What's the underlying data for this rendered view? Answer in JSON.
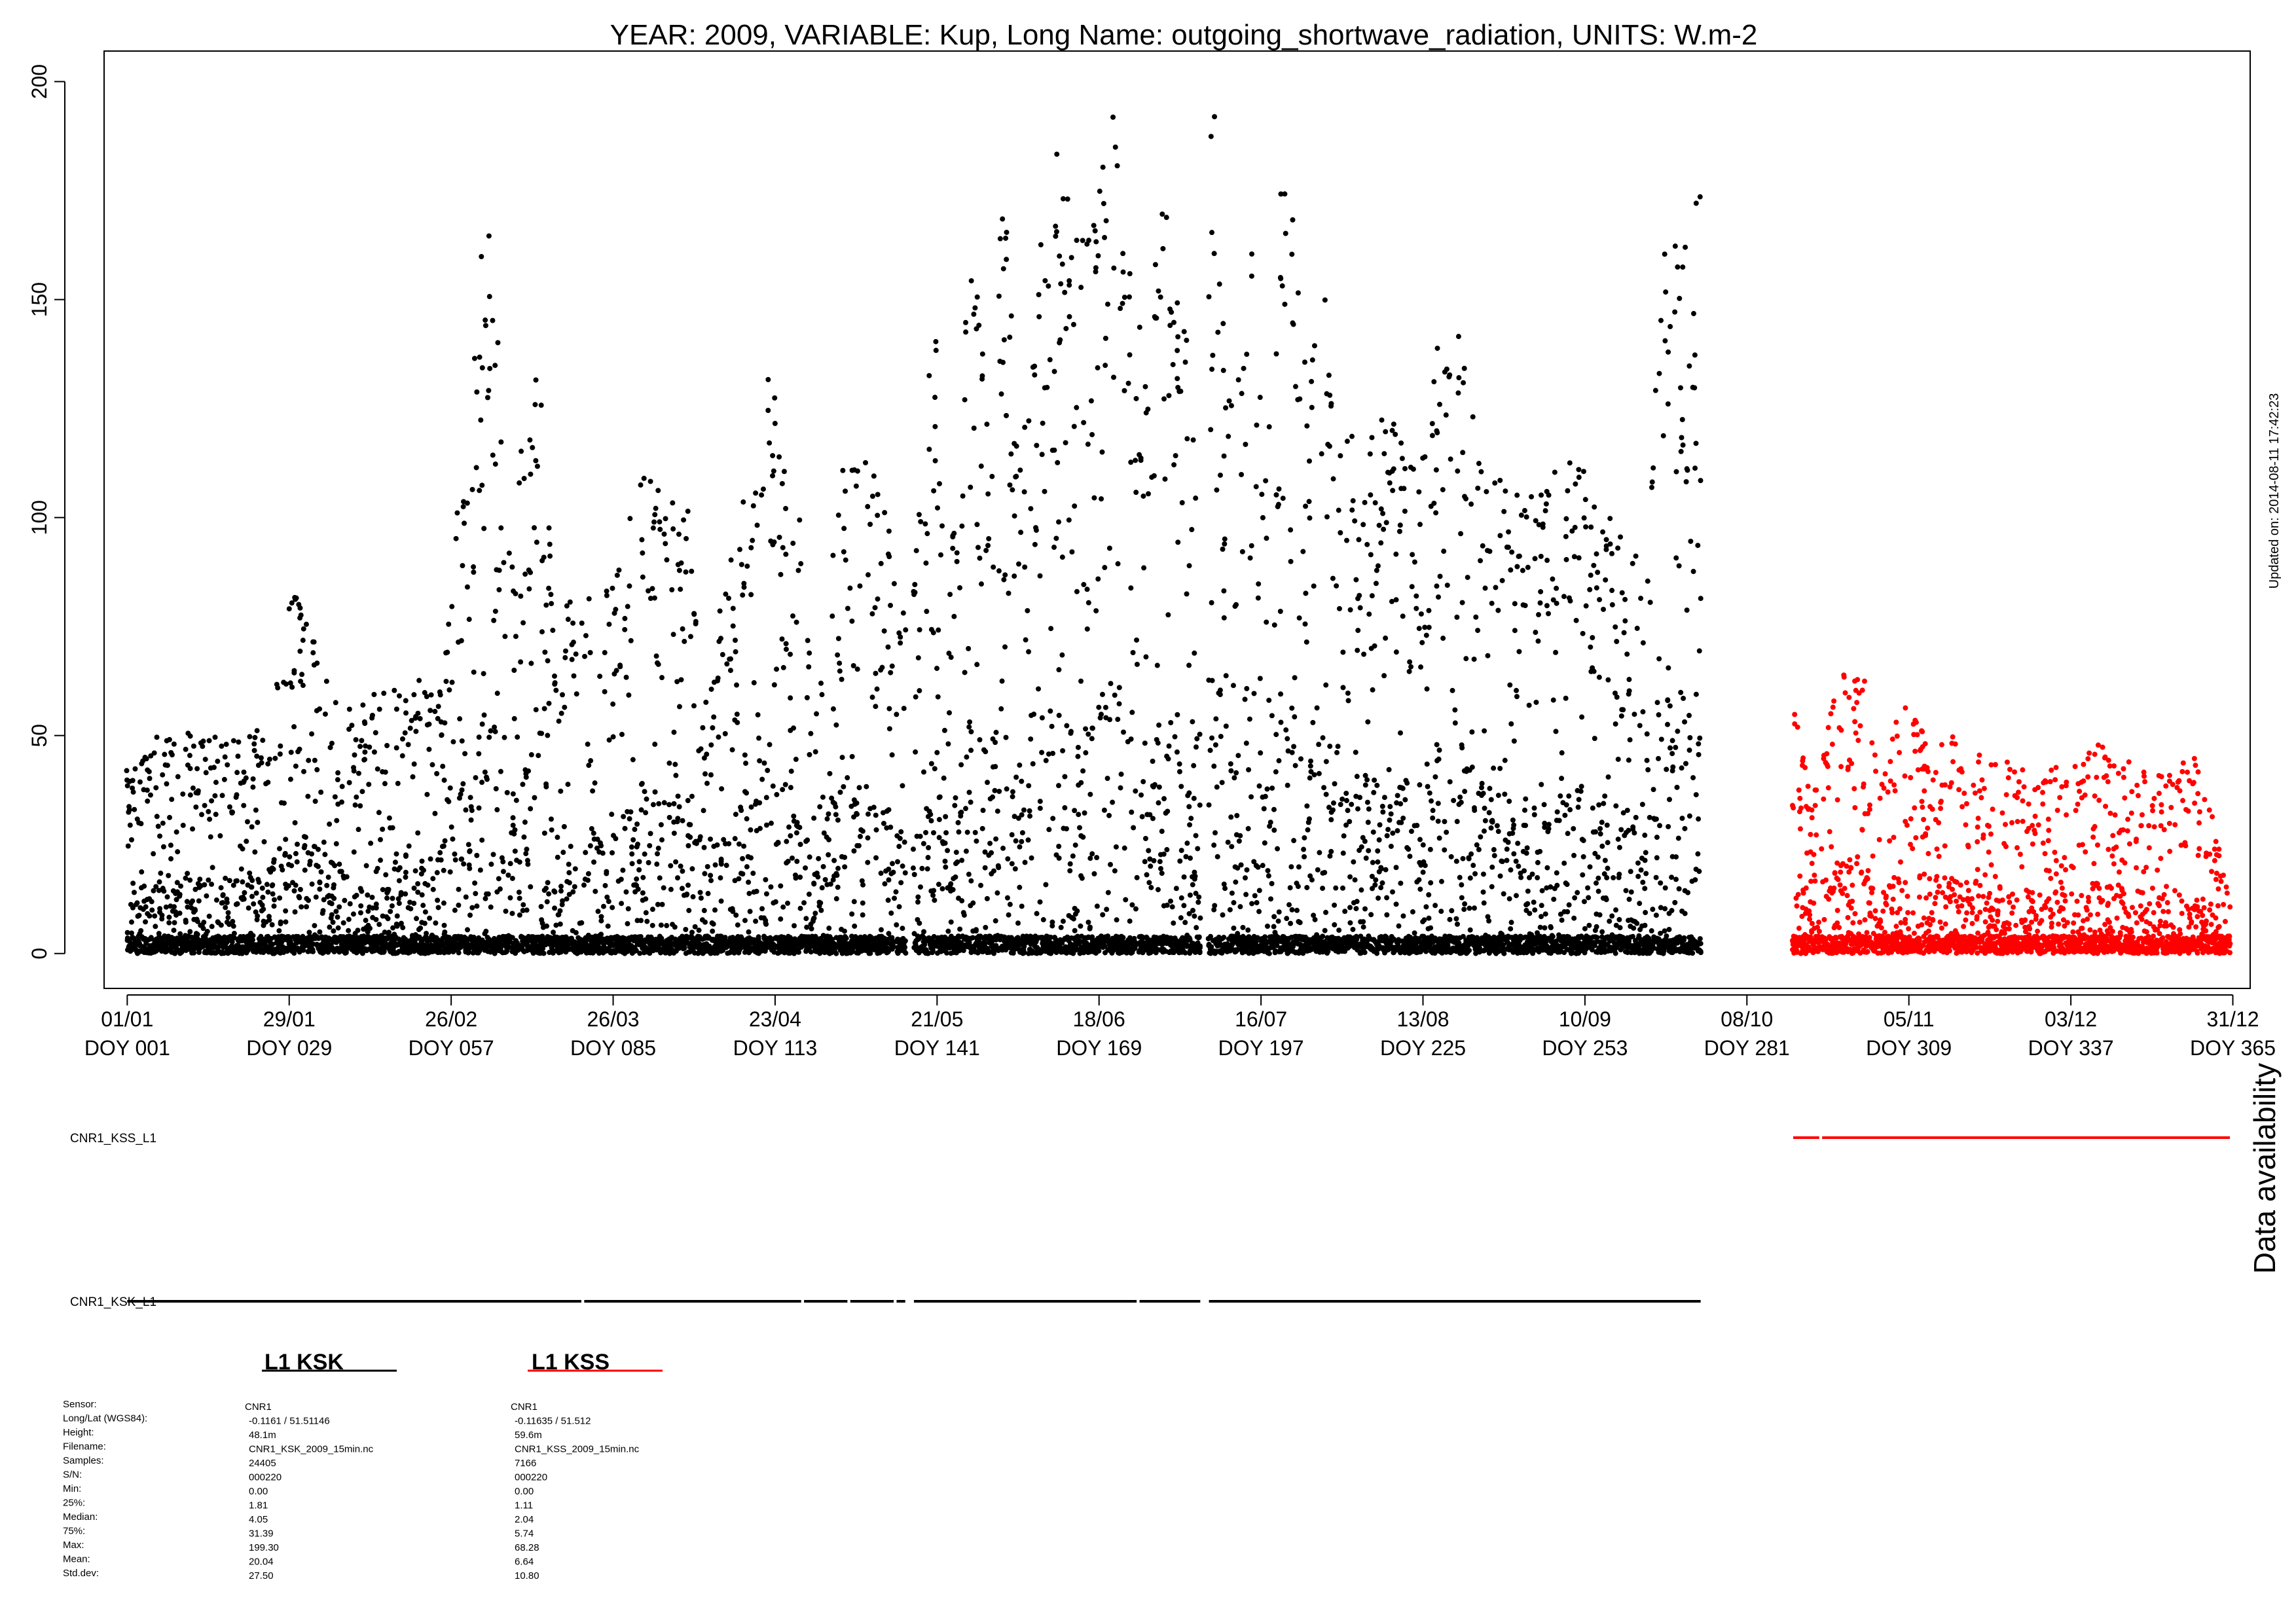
{
  "chart_data": {
    "type": "scatter",
    "title": "YEAR: 2009, VARIABLE: Kup, Long Name: outgoing_shortwave_radiation, UNITS: W.m-2",
    "xlabel": "",
    "ylabel": "",
    "ylim": [
      -8,
      207
    ],
    "xlim": [
      -3,
      368
    ],
    "y_ticks": [
      0,
      50,
      100,
      150,
      200
    ],
    "x_ticks": [
      {
        "doy": 1,
        "date": "01/01",
        "label": "DOY 001"
      },
      {
        "doy": 29,
        "date": "29/01",
        "label": "DOY 029"
      },
      {
        "doy": 57,
        "date": "26/02",
        "label": "DOY 057"
      },
      {
        "doy": 85,
        "date": "26/03",
        "label": "DOY 085"
      },
      {
        "doy": 113,
        "date": "23/04",
        "label": "DOY 113"
      },
      {
        "doy": 141,
        "date": "21/05",
        "label": "DOY 141"
      },
      {
        "doy": 169,
        "date": "18/06",
        "label": "DOY 169"
      },
      {
        "doy": 197,
        "date": "16/07",
        "label": "DOY 197"
      },
      {
        "doy": 225,
        "date": "13/08",
        "label": "DOY 225"
      },
      {
        "doy": 253,
        "date": "10/09",
        "label": "DOY 253"
      },
      {
        "doy": 281,
        "date": "08/10",
        "label": "DOY 281"
      },
      {
        "doy": 309,
        "date": "05/11",
        "label": "DOY 309"
      },
      {
        "doy": 337,
        "date": "03/12",
        "label": "DOY 337"
      },
      {
        "doy": 365,
        "date": "31/12",
        "label": "DOY 365"
      }
    ],
    "grid": false,
    "series": [
      {
        "name": "L1 KSK",
        "color": "#000000",
        "availability_label": "CNR1_KSK_L1",
        "availability": [
          [
            1,
            79.5
          ],
          [
            80,
            117.5
          ],
          [
            118,
            125.5
          ],
          [
            126,
            133.5
          ],
          [
            134,
            135.5
          ],
          [
            137,
            175.5
          ],
          [
            176,
            186.5
          ],
          [
            188,
            273
          ]
        ],
        "envelope": [
          [
            1,
            45
          ],
          [
            5,
            50
          ],
          [
            10,
            52
          ],
          [
            15,
            50
          ],
          [
            20,
            50
          ],
          [
            25,
            52
          ],
          [
            30,
            87
          ],
          [
            35,
            66
          ],
          [
            40,
            55
          ],
          [
            45,
            61
          ],
          [
            50,
            60
          ],
          [
            55,
            70
          ],
          [
            60,
            125
          ],
          [
            63,
            178
          ],
          [
            67,
            105
          ],
          [
            70,
            125
          ],
          [
            72,
            138
          ],
          [
            75,
            80
          ],
          [
            80,
            82
          ],
          [
            85,
            85
          ],
          [
            90,
            112
          ],
          [
            95,
            102
          ],
          [
            98,
            120
          ],
          [
            100,
            50
          ],
          [
            105,
            92
          ],
          [
            110,
            116
          ],
          [
            112,
            140
          ],
          [
            115,
            106
          ],
          [
            118,
            101
          ],
          [
            120,
            55
          ],
          [
            123,
            110
          ],
          [
            127,
            119
          ],
          [
            130,
            110
          ],
          [
            134,
            95
          ],
          [
            136,
            70
          ],
          [
            139,
            125
          ],
          [
            141,
            151
          ],
          [
            143,
            75
          ],
          [
            145,
            140
          ],
          [
            148,
            163
          ],
          [
            150,
            115
          ],
          [
            152,
            187
          ],
          [
            155,
            123
          ],
          [
            158,
            148
          ],
          [
            161,
            194
          ],
          [
            164,
            175
          ],
          [
            167,
            165
          ],
          [
            169,
            178
          ],
          [
            171,
            200
          ],
          [
            173,
            188
          ],
          [
            175,
            140
          ],
          [
            177,
            167
          ],
          [
            179,
            165
          ],
          [
            181,
            175
          ],
          [
            183,
            162
          ],
          [
            185,
            120
          ],
          [
            187,
            175
          ],
          [
            189,
            195
          ],
          [
            192,
            128
          ],
          [
            194,
            140
          ],
          [
            196,
            175
          ],
          [
            198,
            110
          ],
          [
            201,
            193
          ],
          [
            205,
            128
          ],
          [
            207,
            182
          ],
          [
            210,
            115
          ],
          [
            215,
            123
          ],
          [
            220,
            122
          ],
          [
            224,
            110
          ],
          [
            228,
            143
          ],
          [
            231,
            149
          ],
          [
            235,
            112
          ],
          [
            240,
            107
          ],
          [
            245,
            111
          ],
          [
            250,
            117
          ],
          [
            255,
            106
          ],
          [
            260,
            97
          ],
          [
            264,
            90
          ],
          [
            266,
            170
          ],
          [
            268,
            165
          ],
          [
            270,
            179
          ],
          [
            273,
            179
          ]
        ],
        "stats": {
          "sensor": "CNR1",
          "long_lat": "-0.1161 / 51.51146",
          "height": "48.1m",
          "filename": "CNR1_KSK_2009_15min.nc",
          "samples": "24405",
          "sn": "000220",
          "min": "0.00",
          "p25": "1.81",
          "median": "4.05",
          "p75": "31.39",
          "max": "199.30",
          "mean": "20.04",
          "std": "27.50"
        }
      },
      {
        "name": "L1 KSS",
        "color": "#ff0000",
        "availability_label": "CNR1_KSS_L1",
        "availability": [
          [
            289,
            293.5
          ],
          [
            294,
            364.5
          ]
        ],
        "envelope": [
          [
            289,
            60
          ],
          [
            292,
            35
          ],
          [
            296,
            60
          ],
          [
            298,
            68
          ],
          [
            301,
            65
          ],
          [
            304,
            40
          ],
          [
            307,
            55
          ],
          [
            310,
            58
          ],
          [
            313,
            42
          ],
          [
            316,
            53
          ],
          [
            319,
            50
          ],
          [
            322,
            45
          ],
          [
            326,
            44
          ],
          [
            330,
            42
          ],
          [
            334,
            44
          ],
          [
            338,
            43
          ],
          [
            342,
            49
          ],
          [
            346,
            45
          ],
          [
            350,
            42
          ],
          [
            354,
            41
          ],
          [
            358,
            46
          ],
          [
            362,
            30
          ],
          [
            364,
            14
          ]
        ],
        "stats": {
          "sensor": "CNR1",
          "long_lat": "-0.11635 / 51.512",
          "height": "59.6m",
          "filename": "CNR1_KSS_2009_15min.nc",
          "samples": "7166",
          "sn": "000220",
          "min": "0.00",
          "p25": "1.11",
          "median": "2.04",
          "p75": "5.74",
          "max": "68.28",
          "mean": "6.64",
          "std": "10.80"
        }
      }
    ]
  },
  "stats_labels": {
    "sensor": "Sensor:",
    "long_lat": "Long/Lat (WGS84):",
    "height": "Height:",
    "filename": "Filename:",
    "samples": "Samples:",
    "sn": "S/N:",
    "min": "Min:",
    "p25": "25%:",
    "median": "Median:",
    "p75": "75%:",
    "max": "Max:",
    "mean": "Mean:",
    "std": "Std.dev:"
  },
  "availability_title": "Data availability",
  "updated_note": "Updated on: 2014-08-11 17:42:23"
}
